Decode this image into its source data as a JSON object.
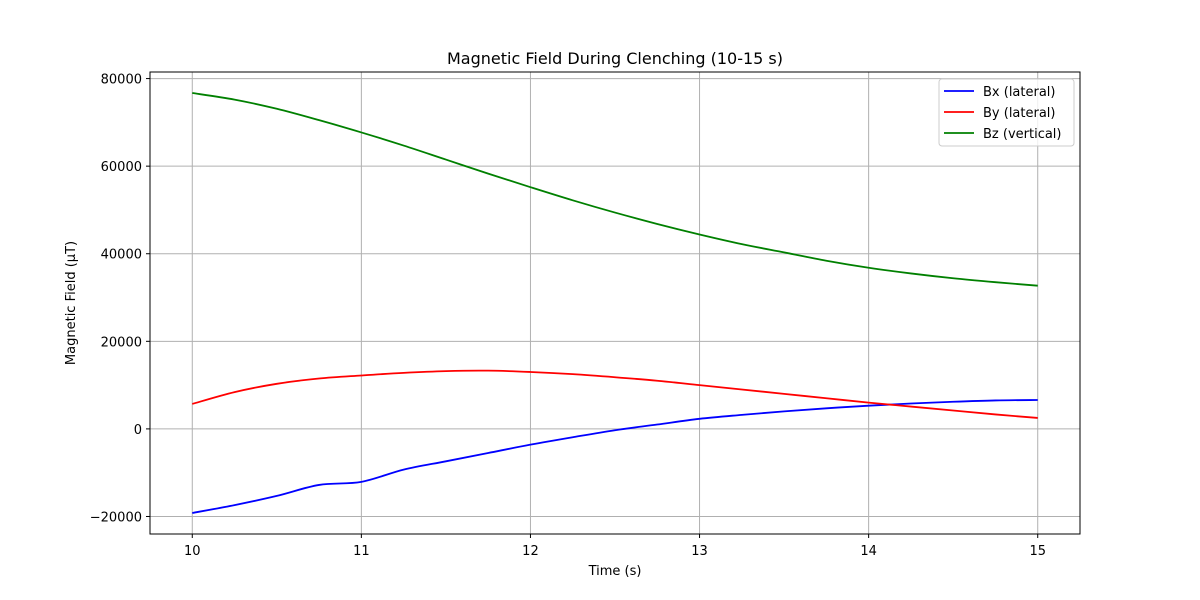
{
  "chart_data": {
    "type": "line",
    "title": "Magnetic Field During Clenching (10-15 s)",
    "xlabel": "Time (s)",
    "ylabel": "Magnetic Field (μT)",
    "xlim": [
      9.75,
      15.25
    ],
    "ylim": [
      -24000,
      81500
    ],
    "xticks": [
      10,
      11,
      12,
      13,
      14,
      15
    ],
    "xtick_labels": [
      "10",
      "11",
      "12",
      "13",
      "14",
      "15"
    ],
    "yticks": [
      -20000,
      0,
      20000,
      40000,
      60000,
      80000
    ],
    "ytick_labels": [
      "−20000",
      "0",
      "20000",
      "40000",
      "60000",
      "80000"
    ],
    "grid": true,
    "legend_position": "upper right",
    "x": [
      10,
      10.25,
      10.5,
      10.75,
      11,
      11.25,
      11.5,
      11.75,
      12,
      12.25,
      12.5,
      12.75,
      13,
      13.25,
      13.5,
      13.75,
      14,
      14.25,
      14.5,
      14.75,
      15
    ],
    "series": [
      {
        "name": "Bx (lateral)",
        "color": "#0000ff",
        "values": [
          -19200,
          -17400,
          -15300,
          -12800,
          -12100,
          -9300,
          -7400,
          -5500,
          -3600,
          -1900,
          -300,
          1000,
          2300,
          3200,
          4000,
          4700,
          5300,
          5800,
          6200,
          6500,
          6600
        ]
      },
      {
        "name": "By (lateral)",
        "color": "#ff0000",
        "values": [
          5700,
          8400,
          10300,
          11500,
          12200,
          12800,
          13200,
          13300,
          13000,
          12500,
          11800,
          11000,
          10000,
          9000,
          8000,
          7000,
          6000,
          5100,
          4200,
          3300,
          2500
        ]
      },
      {
        "name": "Bz (vertical)",
        "color": "#008000",
        "values": [
          76700,
          75200,
          73100,
          70500,
          67700,
          64700,
          61500,
          58300,
          55200,
          52200,
          49400,
          46800,
          44400,
          42200,
          40300,
          38400,
          36800,
          35500,
          34400,
          33500,
          32700
        ]
      }
    ]
  }
}
